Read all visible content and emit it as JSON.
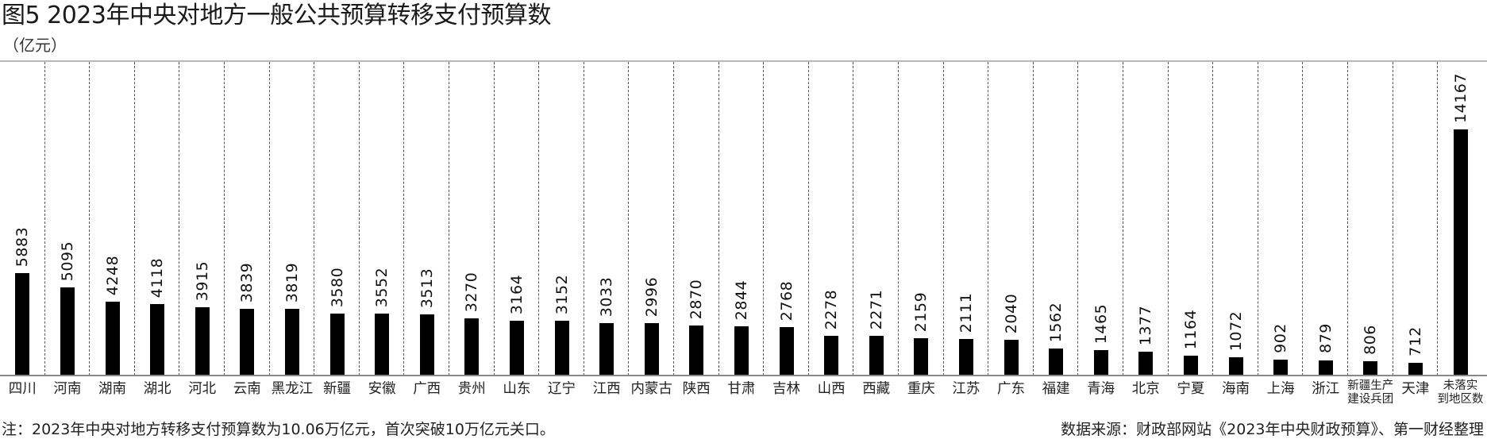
{
  "title": "图5 2023年中央对地方一般公共预算转移支付预算数",
  "unit": "（亿元）",
  "note": "注：2023年中央对地方转移支付预算数为10.06万亿元，首次突破10万亿元关口。",
  "source": "数据来源：财政部网站《2023年中央财政预算》、第一财经整理",
  "colors": {
    "bar": "#000000",
    "separator": "#555555",
    "baseline": "#888888",
    "topline": "#b8b8b8"
  },
  "chart_data": {
    "type": "bar",
    "title": "图5 2023年中央对地方一般公共预算转移支付预算数",
    "xlabel": "",
    "ylabel": "亿元",
    "grid": false,
    "legend": null,
    "categories": [
      "四川",
      "河南",
      "湖南",
      "湖北",
      "河北",
      "云南",
      "黑龙江",
      "新疆",
      "安徽",
      "广西",
      "贵州",
      "山东",
      "辽宁",
      "江西",
      "内蒙古",
      "陕西",
      "甘肃",
      "吉林",
      "山西",
      "西藏",
      "重庆",
      "江苏",
      "广东",
      "福建",
      "青海",
      "北京",
      "宁夏",
      "海南",
      "上海",
      "浙江",
      "新疆生产建设兵团",
      "天津",
      "未落实到地区数"
    ],
    "category_lines": [
      [
        "四川"
      ],
      [
        "河南"
      ],
      [
        "湖南"
      ],
      [
        "湖北"
      ],
      [
        "河北"
      ],
      [
        "云南"
      ],
      [
        "黑龙江"
      ],
      [
        "新疆"
      ],
      [
        "安徽"
      ],
      [
        "广西"
      ],
      [
        "贵州"
      ],
      [
        "山东"
      ],
      [
        "辽宁"
      ],
      [
        "江西"
      ],
      [
        "内蒙古"
      ],
      [
        "陕西"
      ],
      [
        "甘肃"
      ],
      [
        "吉林"
      ],
      [
        "山西"
      ],
      [
        "西藏"
      ],
      [
        "重庆"
      ],
      [
        "江苏"
      ],
      [
        "广东"
      ],
      [
        "福建"
      ],
      [
        "青海"
      ],
      [
        "北京"
      ],
      [
        "宁夏"
      ],
      [
        "海南"
      ],
      [
        "上海"
      ],
      [
        "浙江"
      ],
      [
        "新疆生产",
        "建设兵团"
      ],
      [
        "天津"
      ],
      [
        "未落实",
        "到地区数"
      ]
    ],
    "values": [
      5883,
      5095,
      4248,
      4118,
      3915,
      3839,
      3819,
      3580,
      3552,
      3513,
      3270,
      3164,
      3152,
      3033,
      2996,
      2870,
      2844,
      2768,
      2278,
      2271,
      2159,
      2111,
      2040,
      1562,
      1465,
      1377,
      1164,
      1072,
      902,
      879,
      806,
      712,
      14167
    ],
    "ylim": [
      0,
      18000
    ],
    "data_labels": true,
    "data_label_rotation": -90
  }
}
